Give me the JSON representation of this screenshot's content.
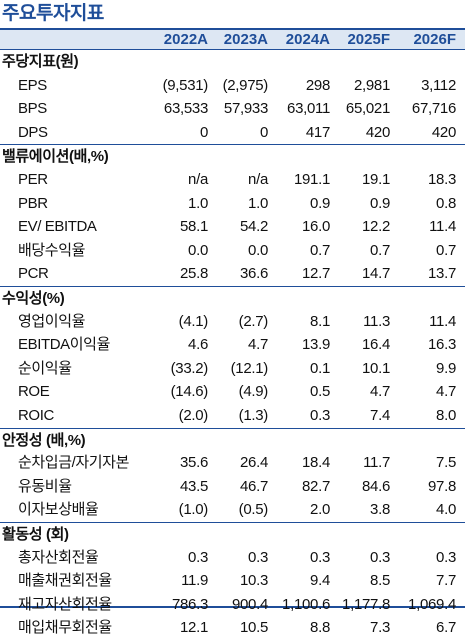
{
  "title": "주요투자지표",
  "years": [
    "2022A",
    "2023A",
    "2024A",
    "2025F",
    "2026F"
  ],
  "sections": [
    {
      "name": "주당지표(원)",
      "rows": [
        {
          "label": "EPS",
          "values": [
            "(9,531)",
            "(2,975)",
            "298",
            "2,981",
            "3,112"
          ]
        },
        {
          "label": "BPS",
          "values": [
            "63,533",
            "57,933",
            "63,011",
            "65,021",
            "67,716"
          ]
        },
        {
          "label": "DPS",
          "values": [
            "0",
            "0",
            "417",
            "420",
            "420"
          ]
        }
      ]
    },
    {
      "name": "밸류에이션(배,%)",
      "rows": [
        {
          "label": "PER",
          "values": [
            "n/a",
            "n/a",
            "191.1",
            "19.1",
            "18.3"
          ]
        },
        {
          "label": "PBR",
          "values": [
            "1.0",
            "1.0",
            "0.9",
            "0.9",
            "0.8"
          ]
        },
        {
          "label": "EV/ EBITDA",
          "values": [
            "58.1",
            "54.2",
            "16.0",
            "12.2",
            "11.4"
          ]
        },
        {
          "label": "배당수익율",
          "values": [
            "0.0",
            "0.0",
            "0.7",
            "0.7",
            "0.7"
          ]
        },
        {
          "label": "PCR",
          "values": [
            "25.8",
            "36.6",
            "12.7",
            "14.7",
            "13.7"
          ]
        }
      ]
    },
    {
      "name": "수익성(%)",
      "rows": [
        {
          "label": "영업이익율",
          "values": [
            "(4.1)",
            "(2.7)",
            "8.1",
            "11.3",
            "11.4"
          ]
        },
        {
          "label": "EBITDA이익율",
          "values": [
            "4.6",
            "4.7",
            "13.9",
            "16.4",
            "16.3"
          ]
        },
        {
          "label": "순이익율",
          "values": [
            "(33.2)",
            "(12.1)",
            "0.1",
            "10.1",
            "9.9"
          ]
        },
        {
          "label": "ROE",
          "values": [
            "(14.6)",
            "(4.9)",
            "0.5",
            "4.7",
            "4.7"
          ]
        },
        {
          "label": "ROIC",
          "values": [
            "(2.0)",
            "(1.3)",
            "0.3",
            "7.4",
            "8.0"
          ]
        }
      ]
    },
    {
      "name": "안정성 (배,%)",
      "rows": [
        {
          "label": "순차입금/자기자본",
          "values": [
            "35.6",
            "26.4",
            "18.4",
            "11.7",
            "7.5"
          ]
        },
        {
          "label": "유동비율",
          "values": [
            "43.5",
            "46.7",
            "82.7",
            "84.6",
            "97.8"
          ]
        },
        {
          "label": "이자보상배율",
          "values": [
            "(1.0)",
            "(0.5)",
            "2.0",
            "3.8",
            "4.0"
          ]
        }
      ]
    },
    {
      "name": "활동성 (회)",
      "rows": [
        {
          "label": "총자산회전율",
          "values": [
            "0.3",
            "0.3",
            "0.3",
            "0.3",
            "0.3"
          ]
        },
        {
          "label": "매출채권회전율",
          "values": [
            "11.9",
            "10.3",
            "9.4",
            "8.5",
            "7.7"
          ]
        },
        {
          "label": "재고자산회전율",
          "values": [
            "786.3",
            "900.4",
            "1,100.6",
            "1,177.8",
            "1,069.4"
          ]
        },
        {
          "label": "매입채무회전율",
          "values": [
            "12.1",
            "10.5",
            "8.8",
            "7.3",
            "6.7"
          ]
        }
      ]
    }
  ]
}
